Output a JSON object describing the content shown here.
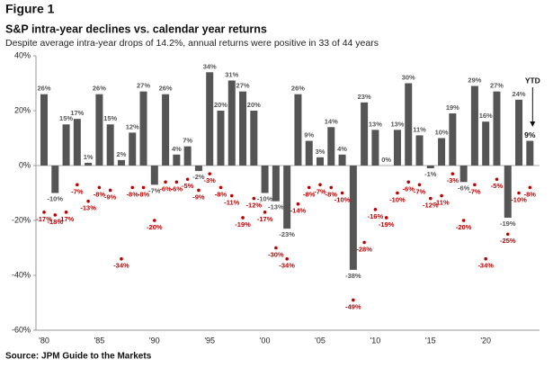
{
  "figure_label": "Figure 1",
  "chart_data": {
    "type": "bar",
    "title": "S&P intra-year declines vs. calendar year returns",
    "subtitle": "Despite average intra-year drops of 14.2%, annual returns were positive in 33 of 44 years",
    "source": "Source: JPM Guide to the Markets",
    "annotation": "YTD",
    "categories": [
      "'80",
      null,
      null,
      null,
      null,
      "'85",
      null,
      null,
      null,
      null,
      "'90",
      null,
      null,
      null,
      null,
      "'95",
      null,
      null,
      null,
      null,
      "'00",
      null,
      null,
      null,
      null,
      "'05",
      null,
      null,
      null,
      null,
      "'10",
      null,
      null,
      null,
      null,
      "'15",
      null,
      null,
      null,
      null,
      "'20",
      null,
      null,
      null,
      null
    ],
    "ylim": [
      -60,
      40
    ],
    "yticks": [
      {
        "value": 40,
        "label": "40%"
      },
      {
        "value": 20,
        "label": "20%"
      },
      {
        "value": 0,
        "label": "0%"
      },
      {
        "value": -20,
        "label": "-20%"
      },
      {
        "value": -40,
        "label": "-40%"
      },
      {
        "value": -60,
        "label": "-60%"
      }
    ],
    "series": [
      {
        "type": "bar",
        "color": "#555555",
        "values": [
          26,
          -10,
          15,
          17,
          1,
          26,
          15,
          2,
          12,
          27,
          -7,
          26,
          4,
          7,
          -2,
          34,
          20,
          31,
          27,
          20,
          -10,
          -13,
          -23,
          26,
          9,
          3,
          14,
          4,
          -38,
          23,
          13,
          0,
          13,
          30,
          11,
          -1,
          10,
          19,
          -6,
          29,
          16,
          27,
          -19,
          24,
          9
        ],
        "value_labels": [
          "26%",
          "-10%",
          "15%",
          "17%",
          "1%",
          "26%",
          "15%",
          "2%",
          "12%",
          "27%",
          "-7%",
          "26%",
          "4%",
          "7%",
          "-2%",
          "34%",
          "20%",
          "31%",
          "27%",
          "20%",
          "-10%",
          "-13%",
          "-23%",
          "26%",
          "9%",
          "3%",
          "14%",
          "4%",
          "-38%",
          "23%",
          "13%",
          "0%",
          "13%",
          "30%",
          "11%",
          "-1%",
          "10%",
          "19%",
          "-6%",
          "29%",
          "16%",
          "27%",
          "-19%",
          "24%",
          "9%"
        ]
      },
      {
        "type": "scatter",
        "color": "#c00000",
        "values": [
          -17,
          -18,
          -17,
          -7,
          -13,
          -8,
          -9,
          -34,
          -8,
          -8,
          -20,
          -6,
          -6,
          -5,
          -9,
          -3,
          -8,
          -11,
          -19,
          -12,
          -17,
          -30,
          -34,
          -14,
          -8,
          -7,
          -8,
          -10,
          -49,
          -28,
          -16,
          -19,
          -10,
          -6,
          -7,
          -12,
          -11,
          -3,
          -20,
          -7,
          -34,
          -5,
          -25,
          -10,
          -8
        ],
        "value_labels": [
          "-17%",
          "-18%",
          "-17%",
          "-7%",
          "-13%",
          "-8%",
          "-9%",
          "-34%",
          "-8%",
          "-8%",
          "-20%",
          "-6%",
          "-6%",
          "-5%",
          "-9%",
          "-3%",
          "-8%",
          "-11%",
          "-19%",
          "-12%",
          "-17%",
          "-30%",
          "-34%",
          "-14%",
          "-8%",
          "-7%",
          "-8%",
          "-10%",
          "-49%",
          "-28%",
          "-16%",
          "-19%",
          "-10%",
          "-6%",
          "-7%",
          "-12%",
          "-11%",
          "-3%",
          "-20%",
          "-7%",
          "-34%",
          "-5%",
          "-25%",
          "-10%",
          "-8%"
        ]
      }
    ]
  }
}
